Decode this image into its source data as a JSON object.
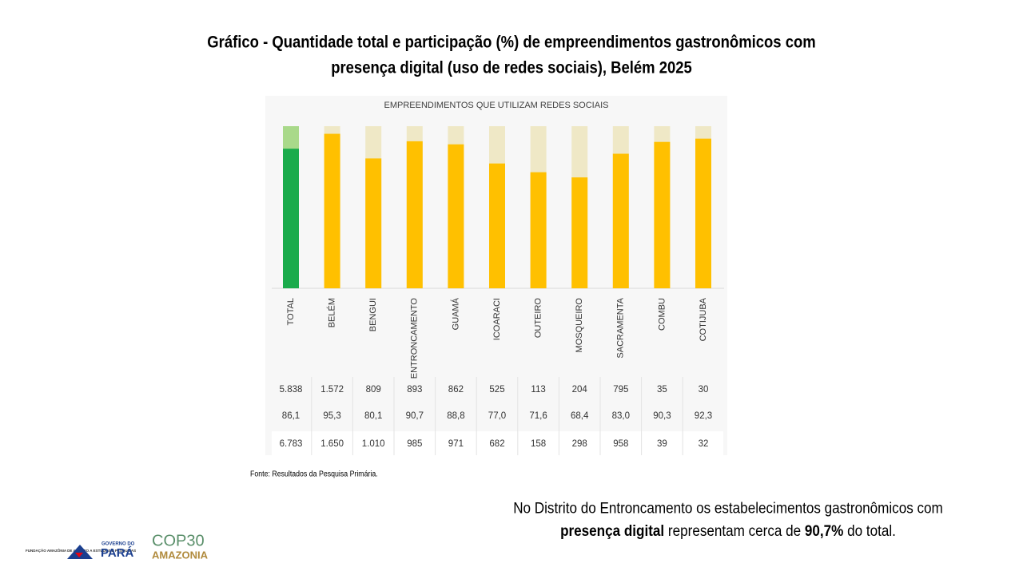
{
  "header": {
    "title_lines": [
      "Gráfico - Quantidade total e participação (%) de empreendimentos gastronômicos com",
      "presença digital (uso de redes sociais), Belém 2025"
    ]
  },
  "chart_data": {
    "type": "bar",
    "title": "EMPREENDIMENTOS QUE UTILIZAM REDES SOCIAIS",
    "categories": [
      "TOTAL",
      "BELÉM",
      "BENGUI",
      "ENTRONCAMENTO",
      "GUAMÁ",
      "ICOARACI",
      "OUTEIRO",
      "MOSQUEIRO",
      "SACRAMENTA",
      "COMBU",
      "COTIJUBA"
    ],
    "values": [
      86.1,
      95.3,
      80.1,
      90.7,
      88.8,
      77.0,
      71.6,
      68.4,
      83.0,
      90.3,
      92.3
    ],
    "value_labels": [
      "86,1",
      "95,3",
      "80,1",
      "90,7",
      "88,8",
      "77,0",
      "71,6",
      "68,4",
      "83,0",
      "90,3",
      "92,3"
    ],
    "colors": [
      "#1aab4b",
      "#ffc000",
      "#ffc000",
      "#ffc000",
      "#ffc000",
      "#ffc000",
      "#ffc000",
      "#ffc000",
      "#ffc000",
      "#ffc000",
      "#ffc000"
    ],
    "track_colors": [
      "#a9d98a",
      "#efe8c6",
      "#efe8c6",
      "#efe8c6",
      "#efe8c6",
      "#efe8c6",
      "#efe8c6",
      "#efe8c6",
      "#efe8c6",
      "#efe8c6",
      "#efe8c6"
    ],
    "ylim": [
      0,
      100
    ],
    "table": {
      "rows": [
        [
          "5.838",
          "1.572",
          "809",
          "893",
          "862",
          "525",
          "113",
          "204",
          "795",
          "35",
          "30"
        ],
        [
          "6.783",
          "1.650",
          "1.010",
          "985",
          "971",
          "682",
          "158",
          "298",
          "958",
          "39",
          "32"
        ]
      ]
    }
  },
  "source": "Fonte: Resultados da Pesquisa Primária.",
  "note": {
    "line1": [
      {
        "text": "No Distrito do Entroncamento os estabelecimentos gastronômicos com",
        "bold": false
      }
    ],
    "line2": [
      {
        "text": "presença digital",
        "bold": true
      },
      {
        "text": " representam cerca de ",
        "bold": false
      },
      {
        "text": "90,7%",
        "bold": true
      },
      {
        "text": " do total.",
        "bold": false
      }
    ]
  },
  "logos": {
    "fapespa": "FUNDAÇÃO AMAZÔNIA DE AMPARO A ESTUDOS E PESQUISAS",
    "gov": "GOVERNO DO",
    "para": "PARÁ",
    "cop": "COP30",
    "amazonia": "AMAZONIA"
  }
}
